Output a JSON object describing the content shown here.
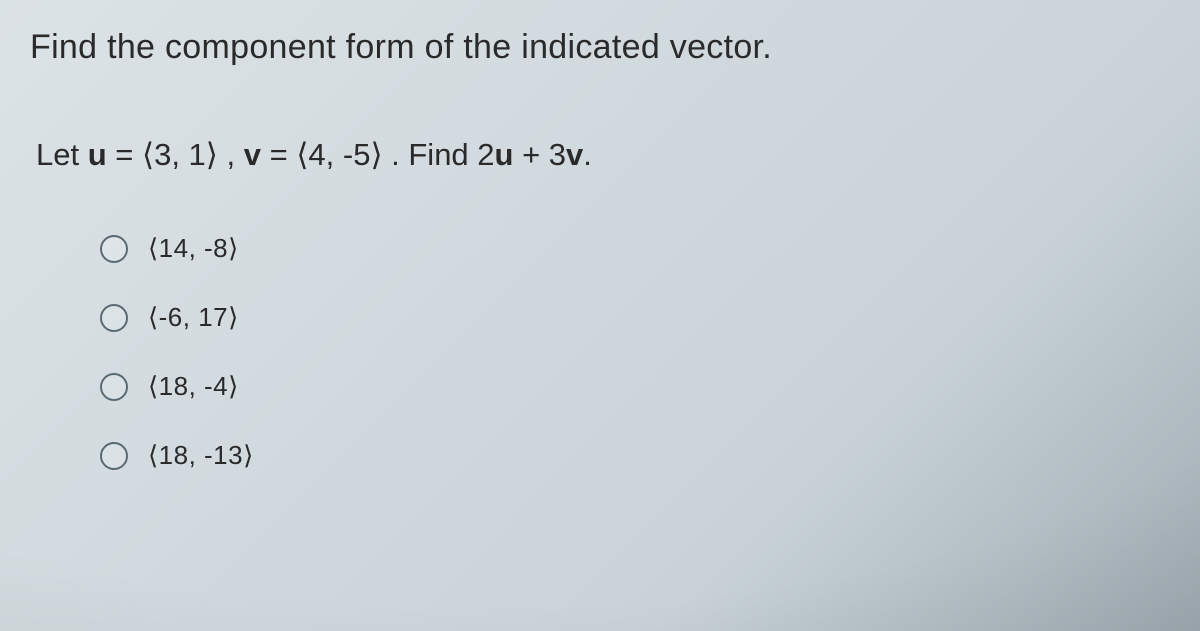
{
  "instruction": "Find the component form of the indicated vector.",
  "question": {
    "prefix": "Let ",
    "u_var": "u",
    "u_eq": " = ⟨3, 1⟩ , ",
    "v_var": "v",
    "v_eq": " = ⟨4, -5⟩ . Find 2",
    "u2": "u",
    "plus": " + 3",
    "v2": "v",
    "suffix": "."
  },
  "options": [
    {
      "label": "⟨14, -8⟩"
    },
    {
      "label": "⟨-6, 17⟩"
    },
    {
      "label": "⟨18, -4⟩"
    },
    {
      "label": "⟨18, -13⟩"
    }
  ],
  "colors": {
    "text": "#2a2a2a",
    "radio_border": "#5a6a72",
    "bg_light": "#dce3e6",
    "bg_dark": "#a0abb3"
  }
}
